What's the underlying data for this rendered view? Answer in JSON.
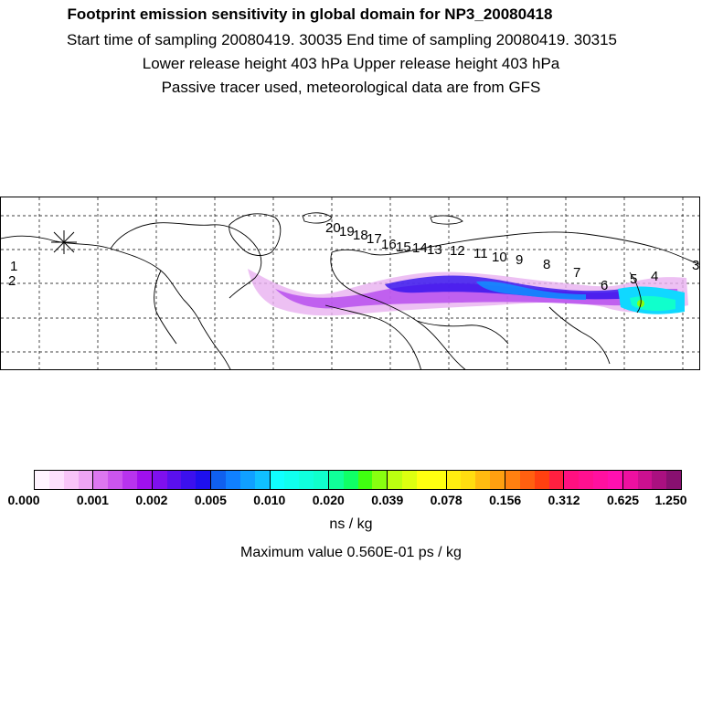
{
  "header": {
    "title": "Footprint emission sensitivity in global domain for NP3_20080418",
    "sampling": "Start time of sampling 20080419. 30035     End time of sampling 20080419. 30315",
    "release": "Lower release height  403 hPa       Upper release height  403 hPa",
    "note": "Passive tracer used, meteorological data are from GFS"
  },
  "map": {
    "trajectory_labels": [
      "1",
      "2",
      "3",
      "4",
      "5",
      "6",
      "7",
      "8",
      "9",
      "10",
      "11",
      "12",
      "13",
      "14",
      "15",
      "16",
      "17",
      "18",
      "19",
      "20"
    ],
    "land_color": "#ffffff",
    "coast_color": "#000000"
  },
  "colorbar": {
    "tick_labels": [
      "0.000",
      "0.001",
      "0.002",
      "0.005",
      "0.010",
      "0.020",
      "0.039",
      "0.078",
      "0.156",
      "0.312",
      "0.625",
      "1.250"
    ],
    "colors": [
      "#fff4ff",
      "#fde0fd",
      "#f8c4f8",
      "#eea4f4",
      "#dd77f0",
      "#cc55ee",
      "#b833ee",
      "#a010ee",
      "#7f10ee",
      "#5a10ee",
      "#3c10ee",
      "#1e10ee",
      "#1060ee",
      "#1080ff",
      "#10a0ff",
      "#10c0ff",
      "#10ffff",
      "#10ffee",
      "#10ffdd",
      "#10ffcc",
      "#10ff99",
      "#10ff66",
      "#40ff10",
      "#88ff10",
      "#bbff10",
      "#ddff10",
      "#ffff10",
      "#ffff10",
      "#ffee10",
      "#ffdd10",
      "#ffbb10",
      "#ffa010",
      "#ff8010",
      "#ff6010",
      "#ff4010",
      "#ff2040",
      "#ff1080",
      "#ff1090",
      "#ff10a0",
      "#ff10b0",
      "#ee10a0",
      "#cc1090",
      "#aa1080",
      "#881070"
    ],
    "units": "ns / kg",
    "maximum": "Maximum value  0.560E-01 ps / kg"
  }
}
